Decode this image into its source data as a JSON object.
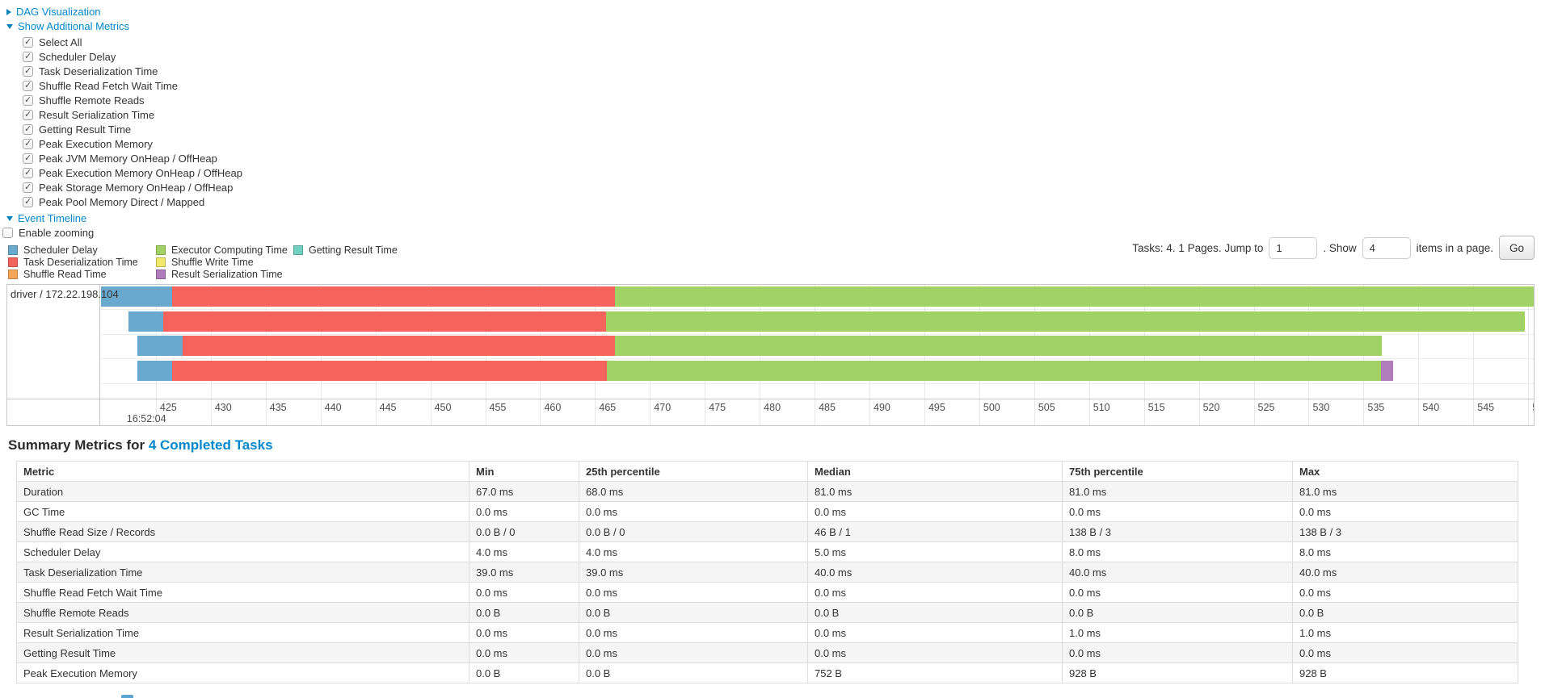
{
  "controls": {
    "dag_toggle": "DAG Visualization",
    "metrics_toggle": "Show Additional Metrics",
    "metric_checkboxes": [
      {
        "label": "Select All",
        "checked": true
      },
      {
        "label": "Scheduler Delay",
        "checked": true
      },
      {
        "label": "Task Deserialization Time",
        "checked": true
      },
      {
        "label": "Shuffle Read Fetch Wait Time",
        "checked": true
      },
      {
        "label": "Shuffle Remote Reads",
        "checked": true
      },
      {
        "label": "Result Serialization Time",
        "checked": true
      },
      {
        "label": "Getting Result Time",
        "checked": true
      },
      {
        "label": "Peak Execution Memory",
        "checked": true
      },
      {
        "label": "Peak JVM Memory OnHeap / OffHeap",
        "checked": true
      },
      {
        "label": "Peak Execution Memory OnHeap / OffHeap",
        "checked": true
      },
      {
        "label": "Peak Storage Memory OnHeap / OffHeap",
        "checked": true
      },
      {
        "label": "Peak Pool Memory Direct / Mapped",
        "checked": true
      }
    ],
    "timeline_toggle": "Event Timeline",
    "enable_zooming": {
      "label": "Enable zooming",
      "checked": false
    }
  },
  "legend": {
    "columns": [
      [
        {
          "label": "Scheduler Delay",
          "type": "scheduler-delay"
        },
        {
          "label": "Task Deserialization Time",
          "type": "task-deserialization"
        },
        {
          "label": "Shuffle Read Time",
          "type": "shuffle-read"
        }
      ],
      [
        {
          "label": "Executor Computing Time",
          "type": "executor-computing"
        },
        {
          "label": "Shuffle Write Time",
          "type": "shuffle-write"
        },
        {
          "label": "Result Serialization Time",
          "type": "result-serialization"
        }
      ],
      [
        {
          "label": "Getting Result Time",
          "type": "getting-result"
        }
      ]
    ]
  },
  "colors": {
    "scheduler-delay": "#69A9CD",
    "task-deserialization": "#F4645C",
    "shuffle-read": "#F9A65B",
    "executor-computing": "#A2D265",
    "shuffle-write": "#F2E869",
    "result-serialization": "#B07CBC",
    "getting-result": "#72CFC2",
    "link": "#0088cc"
  },
  "pagination": {
    "tasks_text": "Tasks: 4. 1 Pages. Jump to",
    "jump_value": "1",
    "show_text": ". Show",
    "show_value": "4",
    "items_text": "items in a page.",
    "go_label": "Go"
  },
  "chart_data": {
    "type": "bar",
    "title": "Event Timeline (stacked horizontal task bars)",
    "group_label": "driver / 172.22.198.104",
    "x_axis": {
      "min": 420,
      "max": 550.5,
      "tick_start": 425,
      "tick_end": 550,
      "tick_step": 5,
      "major_tick_label": "16:52:04",
      "major_label_value": 422.2
    },
    "tasks": [
      {
        "segments": [
          {
            "type": "scheduler-delay",
            "start": 420.0,
            "end": 426.5
          },
          {
            "type": "task-deserialization",
            "start": 426.5,
            "end": 466.8
          },
          {
            "type": "executor-computing",
            "start": 466.8,
            "end": 550.5
          }
        ]
      },
      {
        "segments": [
          {
            "type": "scheduler-delay",
            "start": 422.5,
            "end": 425.7
          },
          {
            "type": "task-deserialization",
            "start": 425.7,
            "end": 466.0
          },
          {
            "type": "executor-computing",
            "start": 466.0,
            "end": 549.7
          }
        ]
      },
      {
        "segments": [
          {
            "type": "scheduler-delay",
            "start": 423.3,
            "end": 427.4
          },
          {
            "type": "task-deserialization",
            "start": 427.4,
            "end": 466.8
          },
          {
            "type": "executor-computing",
            "start": 466.8,
            "end": 536.7
          }
        ]
      },
      {
        "segments": [
          {
            "type": "scheduler-delay",
            "start": 423.3,
            "end": 426.5
          },
          {
            "type": "task-deserialization",
            "start": 426.5,
            "end": 466.1
          },
          {
            "type": "executor-computing",
            "start": 466.1,
            "end": 536.6
          },
          {
            "type": "result-serialization",
            "start": 536.6,
            "end": 537.7
          }
        ]
      }
    ]
  },
  "summary": {
    "heading_prefix": "Summary Metrics for ",
    "heading_link": "4 Completed Tasks",
    "columns": [
      "Metric",
      "Min",
      "25th percentile",
      "Median",
      "75th percentile",
      "Max"
    ],
    "rows": [
      [
        "Duration",
        "67.0 ms",
        "68.0 ms",
        "81.0 ms",
        "81.0 ms",
        "81.0 ms"
      ],
      [
        "GC Time",
        "0.0 ms",
        "0.0 ms",
        "0.0 ms",
        "0.0 ms",
        "0.0 ms"
      ],
      [
        "Shuffle Read Size / Records",
        "0.0 B / 0",
        "0.0 B / 0",
        "46 B / 1",
        "138 B / 3",
        "138 B / 3"
      ],
      [
        "Scheduler Delay",
        "4.0 ms",
        "4.0 ms",
        "5.0 ms",
        "8.0 ms",
        "8.0 ms"
      ],
      [
        "Task Deserialization Time",
        "39.0 ms",
        "39.0 ms",
        "40.0 ms",
        "40.0 ms",
        "40.0 ms"
      ],
      [
        "Shuffle Read Fetch Wait Time",
        "0.0 ms",
        "0.0 ms",
        "0.0 ms",
        "0.0 ms",
        "0.0 ms"
      ],
      [
        "Shuffle Remote Reads",
        "0.0 B",
        "0.0 B",
        "0.0 B",
        "0.0 B",
        "0.0 B"
      ],
      [
        "Result Serialization Time",
        "0.0 ms",
        "0.0 ms",
        "0.0 ms",
        "1.0 ms",
        "1.0 ms"
      ],
      [
        "Getting Result Time",
        "0.0 ms",
        "0.0 ms",
        "0.0 ms",
        "0.0 ms",
        "0.0 ms"
      ],
      [
        "Peak Execution Memory",
        "0.0 B",
        "0.0 B",
        "752 B",
        "928 B",
        "928 B"
      ]
    ]
  }
}
